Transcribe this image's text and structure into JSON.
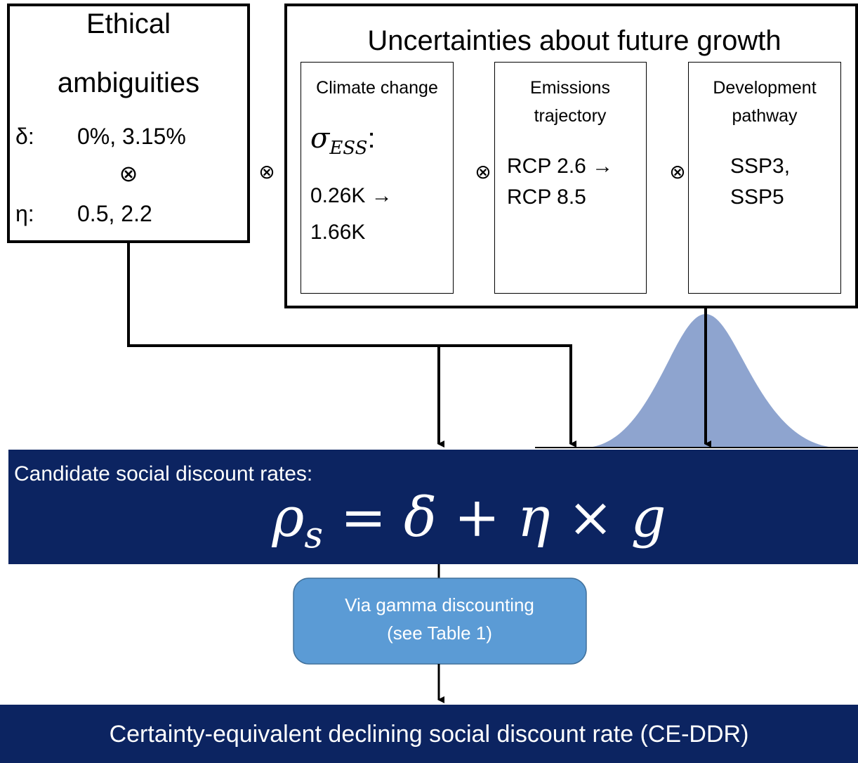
{
  "ethics": {
    "title": [
      "Ethical",
      "ambiguities"
    ],
    "delta_symbol": "δ:",
    "delta_values": "0%, 3.15%",
    "operator": "⊗",
    "eta_symbol": "η:",
    "eta_values": "0.5, 2.2"
  },
  "operators": [
    "⊗",
    "⊗",
    "⊗"
  ],
  "growth": {
    "title": "Uncertainties about future growth",
    "climate": {
      "title": "Climate change",
      "symbol": "σ",
      "subscript": "ESS",
      "colon": ":",
      "lines": [
        "0.26K →",
        "1.66K"
      ]
    },
    "emissions": {
      "title": [
        "Emissions",
        "trajectory"
      ],
      "lines": [
        "RCP 2.6 →",
        "RCP 8.5"
      ]
    },
    "development": {
      "title": [
        "Development",
        "pathway"
      ],
      "lines": [
        "SSP3,",
        "SSP5"
      ]
    }
  },
  "candidate": {
    "label": "Candidate social discount rates:",
    "formula": [
      "ρ",
      "s",
      "=",
      "δ",
      "+",
      "η",
      "×",
      "g"
    ]
  },
  "gamma": {
    "lines": [
      "Via gamma discounting",
      "(see Table 1)"
    ]
  },
  "result": {
    "label": "Certainty-equivalent declining social discount rate (CE-DDR)"
  }
}
